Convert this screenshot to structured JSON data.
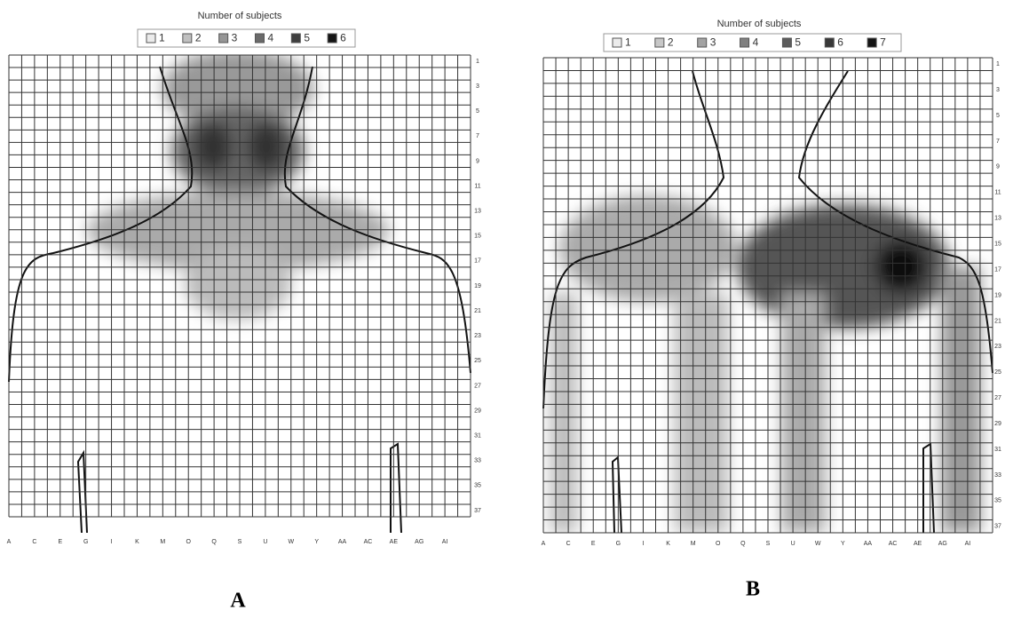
{
  "panels": [
    {
      "label": "A",
      "legend_title": "Number of subjects",
      "legend": [
        1,
        2,
        3,
        4,
        5,
        6
      ],
      "row_labels": [
        1,
        3,
        5,
        7,
        9,
        11,
        13,
        15,
        17,
        19,
        21,
        23,
        25,
        27,
        29,
        31,
        33,
        35,
        37
      ],
      "col_labels": [
        "A",
        "C",
        "E",
        "G",
        "I",
        "K",
        "M",
        "O",
        "Q",
        "S",
        "U",
        "W",
        "Y",
        "AA",
        "AC",
        "AE",
        "AG",
        "AI"
      ]
    },
    {
      "label": "B",
      "legend_title": "Number of subjects",
      "legend": [
        1,
        2,
        3,
        4,
        5,
        6,
        7
      ],
      "row_labels": [
        1,
        3,
        5,
        7,
        9,
        11,
        13,
        15,
        17,
        19,
        21,
        23,
        25,
        27,
        29,
        31,
        33,
        35,
        37
      ],
      "col_labels": [
        "A",
        "C",
        "E",
        "G",
        "I",
        "K",
        "M",
        "O",
        "Q",
        "S",
        "U",
        "W",
        "Y",
        "AA",
        "AC",
        "AE",
        "AG",
        "AI"
      ]
    }
  ]
}
